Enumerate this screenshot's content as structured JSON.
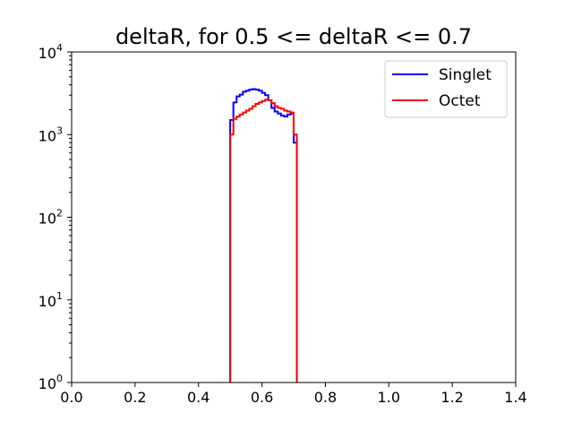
{
  "chart_data": {
    "type": "histogram-step",
    "title": "deltaR, for 0.5 <= deltaR <= 0.7",
    "xlabel": "",
    "ylabel": "",
    "xlim": [
      0.0,
      1.4
    ],
    "ylim": [
      1,
      10000
    ],
    "yscale": "log",
    "grid": false,
    "legend_position": "upper right",
    "x_ticks": [
      "0.0",
      "0.2",
      "0.4",
      "0.6",
      "0.8",
      "1.0",
      "1.2",
      "1.4"
    ],
    "y_ticks": [
      {
        "base": "10",
        "exp": "0",
        "value": 1
      },
      {
        "base": "10",
        "exp": "1",
        "value": 10
      },
      {
        "base": "10",
        "exp": "2",
        "value": 100
      },
      {
        "base": "10",
        "exp": "3",
        "value": 1000
      },
      {
        "base": "10",
        "exp": "4",
        "value": 10000
      }
    ],
    "bin_edges": [
      0.5,
      0.51,
      0.52,
      0.53,
      0.54,
      0.55,
      0.56,
      0.57,
      0.58,
      0.59,
      0.6,
      0.61,
      0.62,
      0.63,
      0.64,
      0.65,
      0.66,
      0.67,
      0.68,
      0.69,
      0.7,
      0.71
    ],
    "series": [
      {
        "name": "Singlet",
        "color": "#0000ff",
        "values": [
          1500,
          2450,
          2900,
          3050,
          3300,
          3400,
          3500,
          3550,
          3500,
          3400,
          3200,
          3000,
          2600,
          2100,
          1900,
          1800,
          1700,
          1650,
          1750,
          1800,
          800
        ]
      },
      {
        "name": "Octet",
        "color": "#ff0000",
        "values": [
          1000,
          1550,
          1650,
          1750,
          1850,
          1950,
          2050,
          2200,
          2350,
          2450,
          2550,
          2650,
          2600,
          2400,
          2200,
          2100,
          2050,
          1950,
          1900,
          1850,
          1000
        ]
      }
    ]
  }
}
